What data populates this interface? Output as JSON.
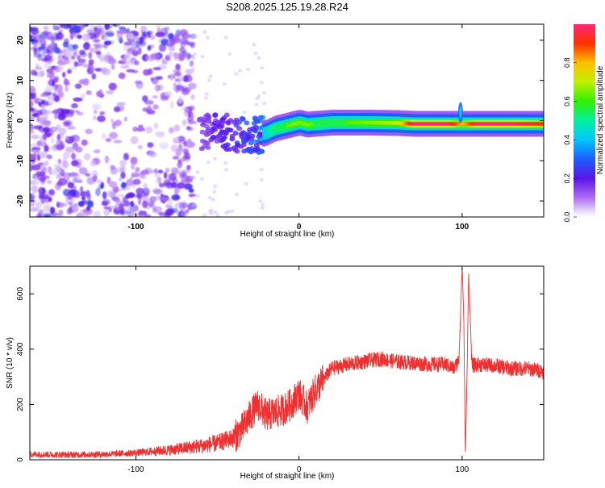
{
  "title": "S208.2025.125.19.28.R24",
  "colors": {
    "frame": "#000000",
    "snr_line": "#f03030",
    "scatter_purple": "#5a14e6",
    "background": "#ffffff"
  },
  "chart_data": [
    {
      "type": "heatmap",
      "xlabel": "Height of straight line (km)",
      "ylabel": "Frequency (Hz)",
      "xlim": [
        -165,
        150
      ],
      "ylim": [
        -24,
        24
      ],
      "xticks": [
        -100,
        0,
        100
      ],
      "yticks": [
        -20,
        -10,
        0,
        10,
        20
      ],
      "colorbar": {
        "label": "Normalized spectral amplitude",
        "range": [
          0,
          1
        ],
        "ticks": [
          "0.0",
          "0.2",
          "0.4",
          "0.6",
          "0.8"
        ],
        "colormap": "rainbow"
      },
      "ridge": {
        "x": [
          -62,
          -50,
          -40,
          -30,
          -24,
          -20,
          -15,
          -10,
          -5,
          0,
          5,
          10,
          20,
          40,
          60,
          70,
          90,
          100,
          110,
          130,
          150
        ],
        "freq": [
          -3.5,
          -2.5,
          -3,
          -4,
          -3.5,
          -3,
          -2,
          -1.5,
          -1,
          -0.5,
          -1,
          -0.8,
          -0.5,
          -0.5,
          -0.6,
          -0.8,
          -0.8,
          -0.8,
          -0.8,
          -0.8,
          -0.8
        ],
        "amplitude": [
          0.05,
          0.15,
          0.2,
          0.3,
          0.4,
          0.45,
          0.55,
          0.6,
          0.65,
          0.65,
          0.65,
          0.6,
          0.6,
          0.65,
          0.7,
          1.0,
          1.0,
          0.8,
          1.0,
          1.0,
          0.9
        ]
      },
      "noise_region": {
        "x_range": [
          -165,
          -65
        ],
        "freq_range": [
          -24,
          24
        ],
        "amplitude": 0.1
      }
    },
    {
      "type": "line",
      "xlabel": "Height of straight line (km)",
      "ylabel": "SNR (10 * v/v)",
      "xlim": [
        -165,
        150
      ],
      "ylim": [
        0,
        700
      ],
      "xticks": [
        -100,
        0,
        100
      ],
      "yticks": [
        0,
        200,
        400,
        600
      ],
      "series": [
        {
          "x": [
            -165,
            -140,
            -120,
            -100,
            -80,
            -60,
            -50,
            -40,
            -35,
            -30,
            -25,
            -20,
            -15,
            -10,
            -5,
            0,
            5,
            10,
            15,
            20,
            30,
            40,
            50,
            60,
            70,
            80,
            90,
            95,
            98,
            100,
            101,
            102,
            103,
            104,
            106,
            110,
            120,
            130,
            140,
            150
          ],
          "y": [
            20,
            18,
            20,
            25,
            35,
            50,
            60,
            80,
            110,
            160,
            200,
            160,
            170,
            180,
            200,
            240,
            190,
            250,
            290,
            330,
            345,
            355,
            365,
            355,
            350,
            345,
            345,
            330,
            360,
            700,
            520,
            20,
            300,
            680,
            340,
            345,
            340,
            330,
            330,
            320
          ]
        }
      ]
    }
  ]
}
